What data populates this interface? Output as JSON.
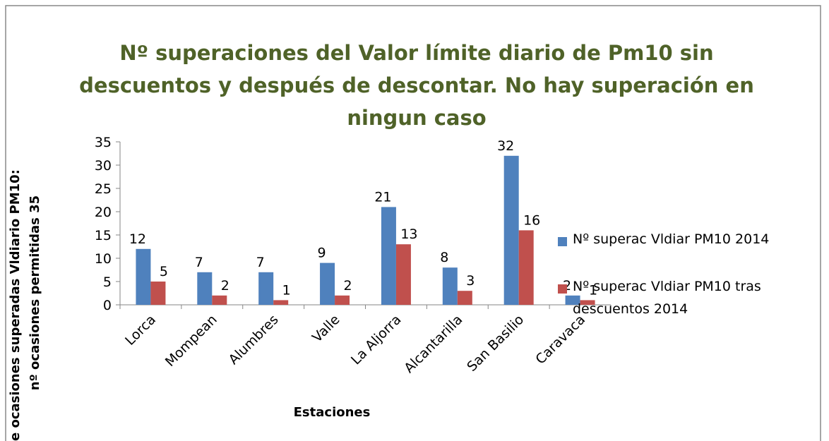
{
  "chart_data": {
    "type": "bar",
    "title_lines": [
      "Nº superaciones del Valor límite diario de Pm10 sin",
      "descuentos y después de descontar. No hay superación en",
      "ningun caso"
    ],
    "x_label": "Estaciones",
    "y_label_lines": [
      "e ocasiones superadas Vldiario PM10:",
      "nº ocasiones permitidas 35"
    ],
    "categories": [
      "Lorca",
      "Mompean",
      "Alumbres",
      "Valle",
      "La Aljorra",
      "Alcantarilla",
      "San Basilio",
      "Caravaca"
    ],
    "series": [
      {
        "name": "Nº superac Vldiar PM10 2014",
        "color": "#4f81bd",
        "values": [
          12,
          7,
          7,
          9,
          21,
          8,
          32,
          2
        ]
      },
      {
        "name": "Nº superac Vldiar PM10 tras descuentos 2014",
        "color": "#c0504d",
        "values": [
          5,
          2,
          1,
          2,
          13,
          3,
          16,
          1
        ]
      }
    ],
    "ylim": [
      0,
      35
    ],
    "yticks": [
      0,
      5,
      10,
      15,
      20,
      25,
      30,
      35
    ],
    "grid": false,
    "legend": "right"
  }
}
